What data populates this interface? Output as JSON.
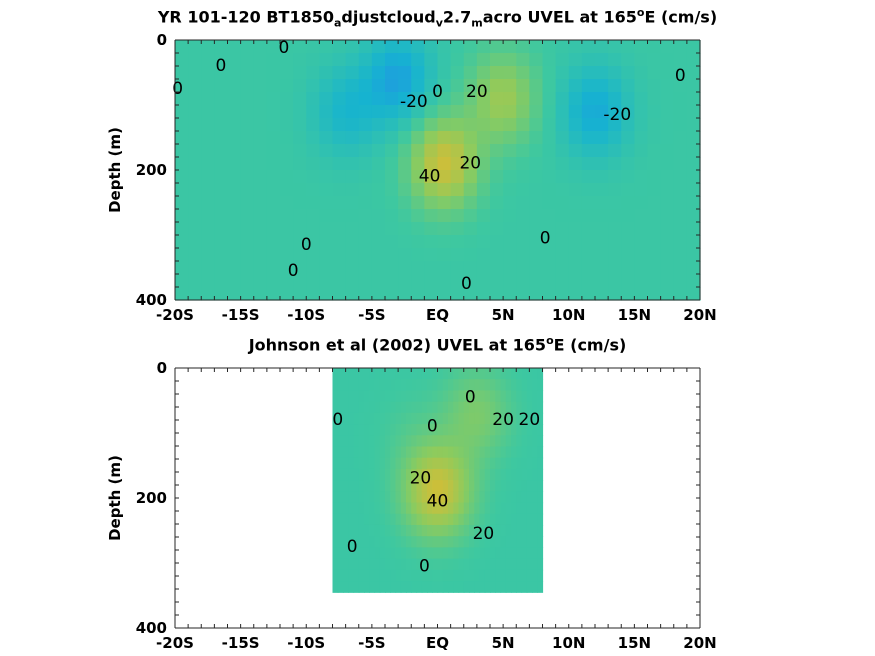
{
  "chart_data": [
    {
      "type": "heatmap",
      "title_parts": {
        "a": "YR 101-120 BT1850",
        "b": "a",
        "c": "djustcloud",
        "d": "v",
        "e": "2.7",
        "f": "m",
        "g": "acro UVEL at 165",
        "h": "o",
        "i": "E (cm/s)"
      },
      "ylabel": "Depth (m)",
      "xlim": [
        -20,
        20
      ],
      "ylim": [
        0,
        400
      ],
      "x_ticks": [
        "-20S",
        "-15S",
        "-10S",
        "-5S",
        "EQ",
        "5N",
        "10N",
        "15N",
        "20N"
      ],
      "y_ticks": [
        "0",
        "200",
        "400"
      ],
      "colormap": [
        "#3e26a8",
        "#2c7bf6",
        "#16b3d0",
        "#3ec8a0",
        "#8ccb5e",
        "#d6bd34",
        "#f9fb14"
      ],
      "clim": [
        -60,
        80
      ],
      "features": [
        {
          "lat": 0.5,
          "depth": 190,
          "value": 45
        },
        {
          "lat": 5,
          "depth": 90,
          "value": 30
        },
        {
          "lat": -3,
          "depth": 60,
          "value": -28
        },
        {
          "lat": 12,
          "depth": 110,
          "value": -25
        },
        {
          "lat": -7,
          "depth": 110,
          "value": -18
        }
      ],
      "contour_labels": [
        {
          "text": "0",
          "lat": -11.7,
          "depth": 12
        },
        {
          "text": "0",
          "lat": -16.5,
          "depth": 40
        },
        {
          "text": "0",
          "lat": -19.8,
          "depth": 75
        },
        {
          "text": "-20",
          "lat": -1.8,
          "depth": 95
        },
        {
          "text": "0",
          "lat": 0,
          "depth": 80
        },
        {
          "text": "20",
          "lat": 3,
          "depth": 80
        },
        {
          "text": "40",
          "lat": -0.6,
          "depth": 210
        },
        {
          "text": "20",
          "lat": 2.5,
          "depth": 190
        },
        {
          "text": "0",
          "lat": 8.2,
          "depth": 305
        },
        {
          "text": "-20",
          "lat": 13.7,
          "depth": 115
        },
        {
          "text": "0",
          "lat": 18.5,
          "depth": 55
        },
        {
          "text": "0",
          "lat": -10,
          "depth": 315
        },
        {
          "text": "0",
          "lat": -11,
          "depth": 355
        },
        {
          "text": "0",
          "lat": 2.2,
          "depth": 375
        }
      ]
    },
    {
      "type": "heatmap",
      "title_parts": {
        "a": "Johnson et al (2002) UVEL at 165",
        "h": "o",
        "i": "E (cm/s)"
      },
      "ylabel": "Depth (m)",
      "xlim": [
        -20,
        20
      ],
      "ylim": [
        0,
        400
      ],
      "data_lat_range": [
        -8,
        8
      ],
      "x_ticks": [
        "-20S",
        "-15S",
        "-10S",
        "-5S",
        "EQ",
        "5N",
        "10N",
        "15N",
        "20N"
      ],
      "y_ticks": [
        "0",
        "200",
        "400"
      ],
      "features": [
        {
          "lat": 0,
          "depth": 190,
          "value": 45
        },
        {
          "lat": -2,
          "depth": 100,
          "value": 5
        },
        {
          "lat": 3,
          "depth": 70,
          "value": 20
        },
        {
          "lat": -6,
          "depth": 150,
          "value": 0
        }
      ],
      "contour_labels": [
        {
          "text": "0",
          "lat": -7.6,
          "depth": 80
        },
        {
          "text": "0",
          "lat": -0.4,
          "depth": 90
        },
        {
          "text": "0",
          "lat": 2.5,
          "depth": 45
        },
        {
          "text": "20",
          "lat": 5,
          "depth": 80
        },
        {
          "text": "20",
          "lat": 7,
          "depth": 80
        },
        {
          "text": "20",
          "lat": -1.3,
          "depth": 170
        },
        {
          "text": "40",
          "lat": 0,
          "depth": 205
        },
        {
          "text": "20",
          "lat": 3.5,
          "depth": 255
        },
        {
          "text": "0",
          "lat": -6.5,
          "depth": 275
        },
        {
          "text": "0",
          "lat": -1,
          "depth": 305
        }
      ]
    }
  ]
}
